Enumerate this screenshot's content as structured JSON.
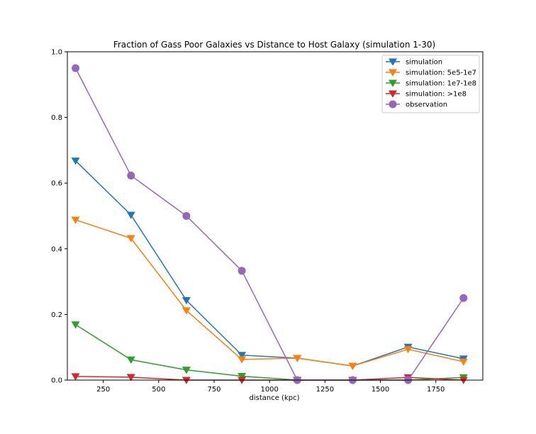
{
  "chart_data": {
    "type": "line",
    "title": "Fraction of Gass Poor Galaxies vs Distance to Host Galaxy (simulation 1-30)",
    "xlabel": "distance (kpc)",
    "ylabel": "",
    "xlim": [
      88,
      1962
    ],
    "ylim": [
      0.0,
      1.0
    ],
    "x_ticks": [
      250,
      500,
      750,
      1000,
      1250,
      1500,
      1750
    ],
    "x_tick_labels": [
      "250",
      "500",
      "750",
      "1000",
      "1250",
      "1500",
      "1750"
    ],
    "y_ticks": [
      0.0,
      0.2,
      0.4,
      0.6,
      0.8,
      1.0
    ],
    "y_tick_labels": [
      "0.0",
      "0.2",
      "0.4",
      "0.6",
      "0.8",
      "1.0"
    ],
    "grid": false,
    "legend_position": "top-right",
    "x": [
      125,
      375,
      625,
      875,
      1125,
      1375,
      1625,
      1875
    ],
    "series": [
      {
        "name": "simulation",
        "color": "#1f77b4",
        "marker": "triangle-down",
        "values": [
          0.668,
          0.503,
          0.243,
          0.076,
          0.067,
          0.043,
          0.101,
          0.065
        ]
      },
      {
        "name": "simulation: 5e5-1e7",
        "color": "#ff7f0e",
        "marker": "triangle-down",
        "values": [
          0.488,
          0.432,
          0.212,
          0.063,
          0.067,
          0.043,
          0.094,
          0.056
        ]
      },
      {
        "name": "simulation: 1e7-1e8",
        "color": "#2ca02c",
        "marker": "triangle-down",
        "values": [
          0.169,
          0.062,
          0.031,
          0.012,
          0.0,
          0.0,
          0.0,
          0.008
        ]
      },
      {
        "name": "simulation: >1e8",
        "color": "#d62728",
        "marker": "triangle-down",
        "values": [
          0.011,
          0.009,
          0.0,
          0.0,
          0.0,
          0.0,
          0.008,
          0.0
        ]
      },
      {
        "name": "observation",
        "color": "#9467bd",
        "marker": "circle",
        "values": [
          0.95,
          0.623,
          0.5,
          0.333,
          0.0,
          0.0,
          0.0,
          0.25
        ]
      }
    ]
  }
}
